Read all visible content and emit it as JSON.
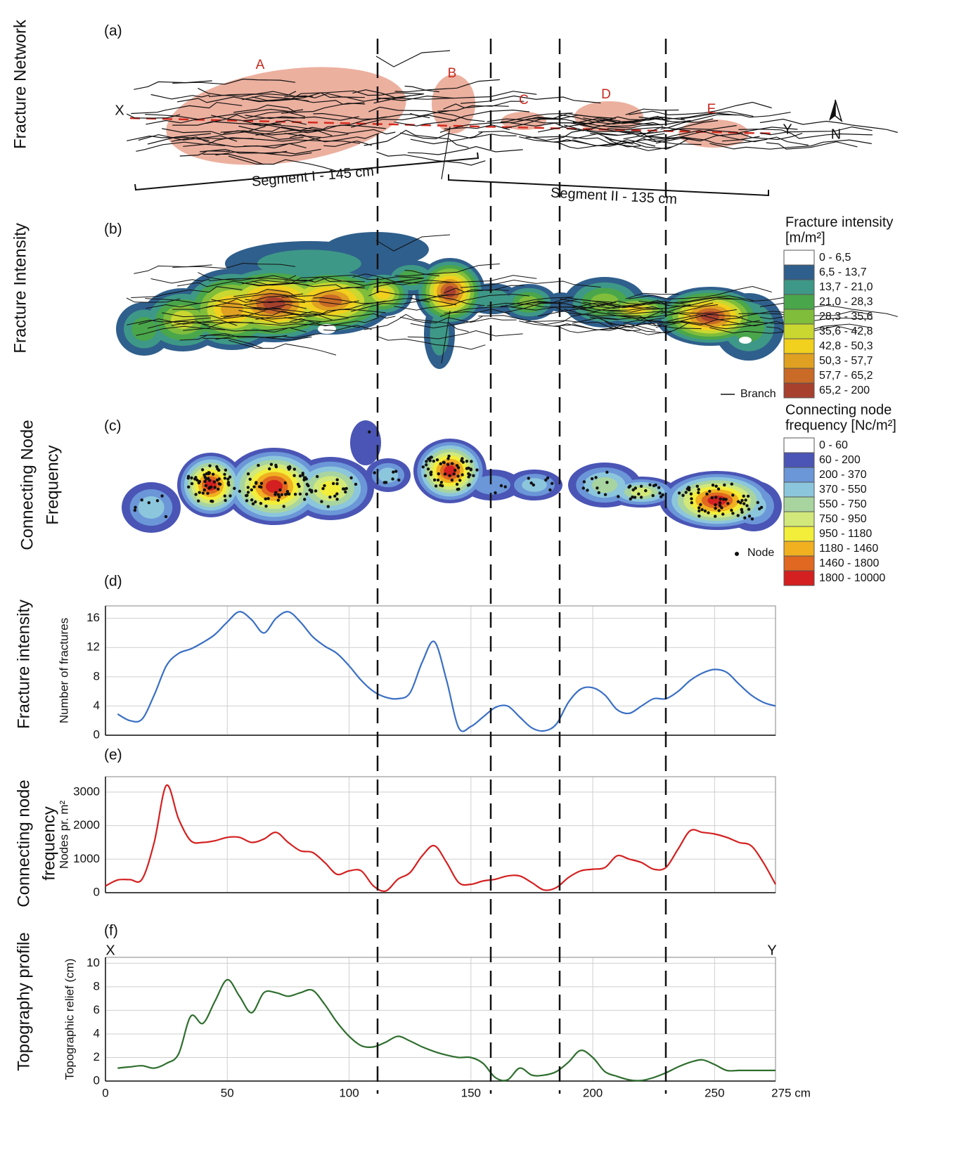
{
  "side_labels": [
    {
      "lines": [
        "Fracture Network"
      ]
    },
    {
      "lines": [
        "Fracture Intensity"
      ]
    },
    {
      "lines": [
        "Connecting Node",
        "Frequency"
      ]
    },
    {
      "lines": [
        "Fracture intensity"
      ]
    },
    {
      "lines": [
        "Connecting node",
        "frequency"
      ]
    },
    {
      "lines": [
        "Topography profile"
      ]
    }
  ],
  "panel_a": {
    "letter": "(a)",
    "zones": [
      "A",
      "B",
      "C",
      "D",
      "E"
    ],
    "start": "X",
    "end": "Y",
    "north": "N",
    "segments": [
      "Segment I - 145 cm",
      "Segment II - 135 cm"
    ]
  },
  "panel_b": {
    "letter": "(b)",
    "legend_title": [
      "Fracture intensity",
      "[m/m²]"
    ],
    "marker": "Branch",
    "classes": [
      {
        "label": "0 - 6,5",
        "color": "#ffffff"
      },
      {
        "label": "6,5 - 13,7",
        "color": "#2f5f8c"
      },
      {
        "label": "13,7 - 21,0",
        "color": "#3e9887"
      },
      {
        "label": "21,0 - 28,3",
        "color": "#4aa64a"
      },
      {
        "label": "28,3 - 35,6",
        "color": "#80bd3b"
      },
      {
        "label": "35,6 - 42,8",
        "color": "#c9d730"
      },
      {
        "label": "42,8 - 50,3",
        "color": "#f1d01e"
      },
      {
        "label": "50,3 - 57,7",
        "color": "#e0a021"
      },
      {
        "label": "57,7 - 65,2",
        "color": "#c96a26"
      },
      {
        "label": "65,2 - 200",
        "color": "#a8402e"
      }
    ]
  },
  "panel_c": {
    "letter": "(c)",
    "legend_title": [
      "Connecting node",
      "frequency [Nc/m²]"
    ],
    "marker": "Node",
    "classes": [
      {
        "label": "0 - 60",
        "color": "#ffffff"
      },
      {
        "label": "60 - 200",
        "color": "#4a55b5"
      },
      {
        "label": "200 - 370",
        "color": "#6b96d8"
      },
      {
        "label": "370 - 550",
        "color": "#8cc6dc"
      },
      {
        "label": "550 - 750",
        "color": "#a8d4a0"
      },
      {
        "label": "750 - 950",
        "color": "#d2e87a"
      },
      {
        "label": "950 - 1180",
        "color": "#f2ee3a"
      },
      {
        "label": "1180 - 1460",
        "color": "#f0b020"
      },
      {
        "label": "1460 - 1800",
        "color": "#e06820"
      },
      {
        "label": "1800 - 10000",
        "color": "#d42020"
      }
    ]
  },
  "chart_data": [
    {
      "type": "line",
      "letter": "(d)",
      "ylabel": "Number of fractures",
      "color": "#3a6fc4",
      "x": [
        5,
        10,
        15,
        20,
        25,
        30,
        35,
        40,
        45,
        50,
        55,
        60,
        65,
        70,
        75,
        80,
        85,
        90,
        95,
        100,
        105,
        110,
        115,
        120,
        125,
        130,
        135,
        140,
        145,
        150,
        155,
        160,
        165,
        170,
        175,
        180,
        185,
        190,
        195,
        200,
        205,
        210,
        215,
        220,
        225,
        230,
        235,
        240,
        245,
        250,
        255,
        260,
        265,
        270,
        275
      ],
      "values": [
        2.9,
        2.0,
        2.2,
        5.5,
        9.5,
        11.2,
        11.8,
        12.7,
        13.8,
        15.5,
        16.9,
        15.8,
        14.0,
        16.0,
        16.9,
        15.5,
        13.5,
        12.2,
        11.2,
        9.5,
        7.5,
        6.0,
        5.2,
        5.0,
        5.8,
        10.0,
        12.8,
        7.5,
        1.0,
        1.2,
        2.5,
        3.8,
        4.0,
        2.5,
        1.0,
        0.6,
        1.5,
        4.5,
        6.3,
        6.5,
        5.5,
        3.5,
        3.0,
        4.0,
        5.0,
        5.0,
        6.0,
        7.5,
        8.5,
        9.0,
        8.6,
        7.0,
        5.5,
        4.5,
        4.0
      ],
      "xlim": [
        0,
        275
      ],
      "ylim": [
        0,
        17.7
      ],
      "yticks": [
        0,
        4,
        8,
        12,
        16
      ],
      "xticks": [
        50,
        100,
        150,
        200,
        250
      ],
      "xtick_labels": false,
      "grid": true
    },
    {
      "type": "line",
      "letter": "(e)",
      "ylabel": "Nodes pr. m²",
      "color": "#d42020",
      "x": [
        0,
        5,
        10,
        15,
        20,
        25,
        30,
        35,
        40,
        45,
        50,
        55,
        60,
        65,
        70,
        75,
        80,
        85,
        90,
        95,
        100,
        105,
        110,
        115,
        120,
        125,
        130,
        135,
        140,
        145,
        150,
        155,
        160,
        165,
        170,
        175,
        180,
        185,
        190,
        195,
        200,
        205,
        210,
        215,
        220,
        225,
        230,
        235,
        240,
        245,
        250,
        255,
        260,
        265,
        270,
        275
      ],
      "values": [
        200,
        380,
        390,
        400,
        1500,
        3200,
        2200,
        1550,
        1500,
        1550,
        1650,
        1650,
        1500,
        1600,
        1800,
        1500,
        1250,
        1200,
        900,
        550,
        650,
        650,
        200,
        50,
        400,
        600,
        1100,
        1400,
        900,
        300,
        250,
        350,
        400,
        500,
        500,
        300,
        80,
        150,
        450,
        650,
        700,
        750,
        1100,
        1000,
        900,
        700,
        750,
        1300,
        1850,
        1800,
        1750,
        1650,
        1500,
        1400,
        900,
        250
      ],
      "xlim": [
        0,
        275
      ],
      "ylim": [
        0,
        3460
      ],
      "yticks": [
        0,
        1000,
        2000,
        3000
      ],
      "xticks": [
        50,
        100,
        150,
        200,
        250
      ],
      "xtick_labels": false,
      "grid": true
    },
    {
      "type": "line",
      "letter": "(f)",
      "ylabel": "Topographic relief (cm)",
      "color": "#2e6e2e",
      "x_ends": [
        "X",
        "Y"
      ],
      "x": [
        5,
        10,
        15,
        20,
        25,
        30,
        35,
        40,
        45,
        50,
        55,
        60,
        65,
        70,
        75,
        80,
        85,
        90,
        95,
        100,
        105,
        110,
        115,
        120,
        125,
        130,
        135,
        140,
        145,
        150,
        155,
        160,
        165,
        170,
        175,
        180,
        185,
        190,
        195,
        200,
        205,
        210,
        215,
        220,
        225,
        230,
        235,
        240,
        245,
        250,
        255,
        260,
        265,
        270,
        275
      ],
      "values": [
        1.1,
        1.2,
        1.3,
        1.1,
        1.5,
        2.3,
        5.5,
        4.9,
        6.8,
        8.6,
        7.2,
        5.8,
        7.5,
        7.5,
        7.2,
        7.5,
        7.7,
        6.5,
        5.0,
        3.8,
        3.0,
        2.9,
        3.3,
        3.8,
        3.4,
        2.9,
        2.5,
        2.2,
        2.0,
        2.0,
        1.5,
        0.3,
        0.1,
        1.1,
        0.5,
        0.5,
        0.8,
        1.6,
        2.6,
        2.0,
        0.8,
        0.4,
        0.1,
        0.05,
        0.3,
        0.7,
        1.2,
        1.6,
        1.8,
        1.4,
        0.9,
        0.9,
        0.9,
        0.9,
        0.9
      ],
      "xlim": [
        0,
        275
      ],
      "ylim": [
        0,
        10.5
      ],
      "yticks": [
        0,
        2,
        4,
        6,
        8,
        10
      ],
      "xticks": [
        0,
        50,
        100,
        150,
        200,
        250,
        {
          "value": 275,
          "label": "275 cm"
        }
      ],
      "xtick_labels": true,
      "grid": true
    }
  ]
}
